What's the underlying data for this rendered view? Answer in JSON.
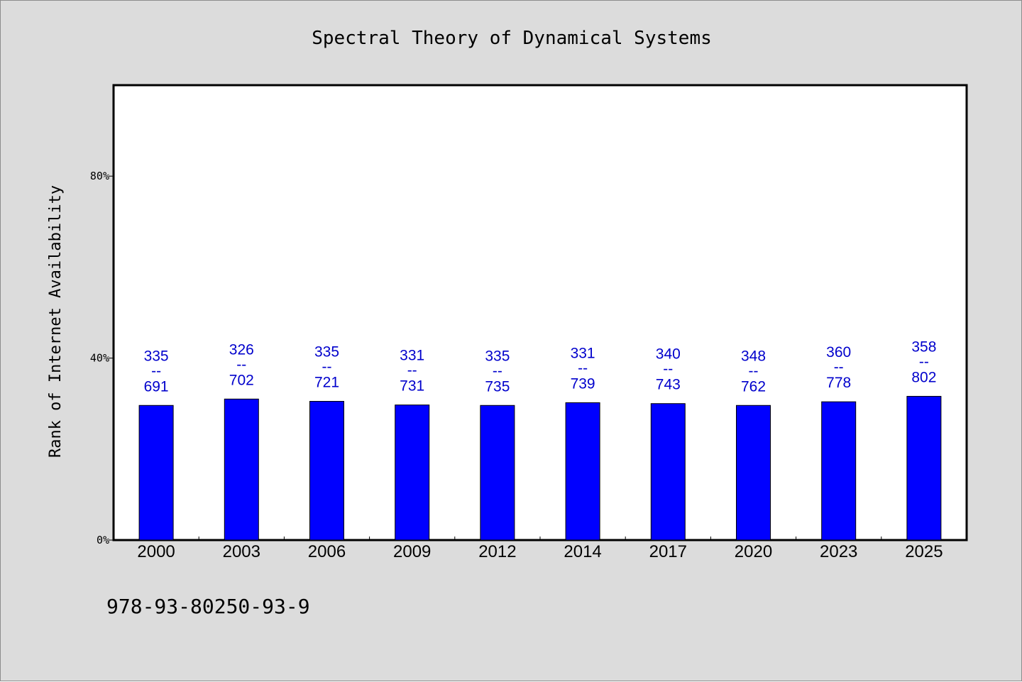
{
  "chart_data": {
    "type": "bar",
    "title": "Spectral Theory of Dynamical Systems",
    "xlabel": "",
    "ylabel": "Rank of Internet Availability",
    "categories": [
      "2000",
      "2003",
      "2006",
      "2009",
      "2012",
      "2014",
      "2017",
      "2020",
      "2023",
      "2025"
    ],
    "values": [
      29.6,
      31.0,
      30.5,
      29.7,
      29.6,
      30.2,
      30.0,
      29.6,
      30.4,
      31.6
    ],
    "data_labels": [
      {
        "top": "335",
        "sep": "--",
        "bottom": "691"
      },
      {
        "top": "326",
        "sep": "--",
        "bottom": "702"
      },
      {
        "top": "335",
        "sep": "--",
        "bottom": "721"
      },
      {
        "top": "331",
        "sep": "--",
        "bottom": "731"
      },
      {
        "top": "335",
        "sep": "--",
        "bottom": "735"
      },
      {
        "top": "331",
        "sep": "--",
        "bottom": "739"
      },
      {
        "top": "340",
        "sep": "--",
        "bottom": "743"
      },
      {
        "top": "348",
        "sep": "--",
        "bottom": "762"
      },
      {
        "top": "360",
        "sep": "--",
        "bottom": "778"
      },
      {
        "top": "358",
        "sep": "--",
        "bottom": "802"
      }
    ],
    "ylim": [
      0,
      100
    ],
    "yticks": [
      0,
      40,
      80
    ],
    "ytick_labels": [
      "0%",
      "40%",
      "80%"
    ],
    "grid": false,
    "bar_color": "#0000ff",
    "label_color": "#0000cc",
    "background_color": "#dcdcdc",
    "plot_background_color": "#ffffff"
  },
  "footer": {
    "isbn": "978-93-80250-93-9"
  }
}
